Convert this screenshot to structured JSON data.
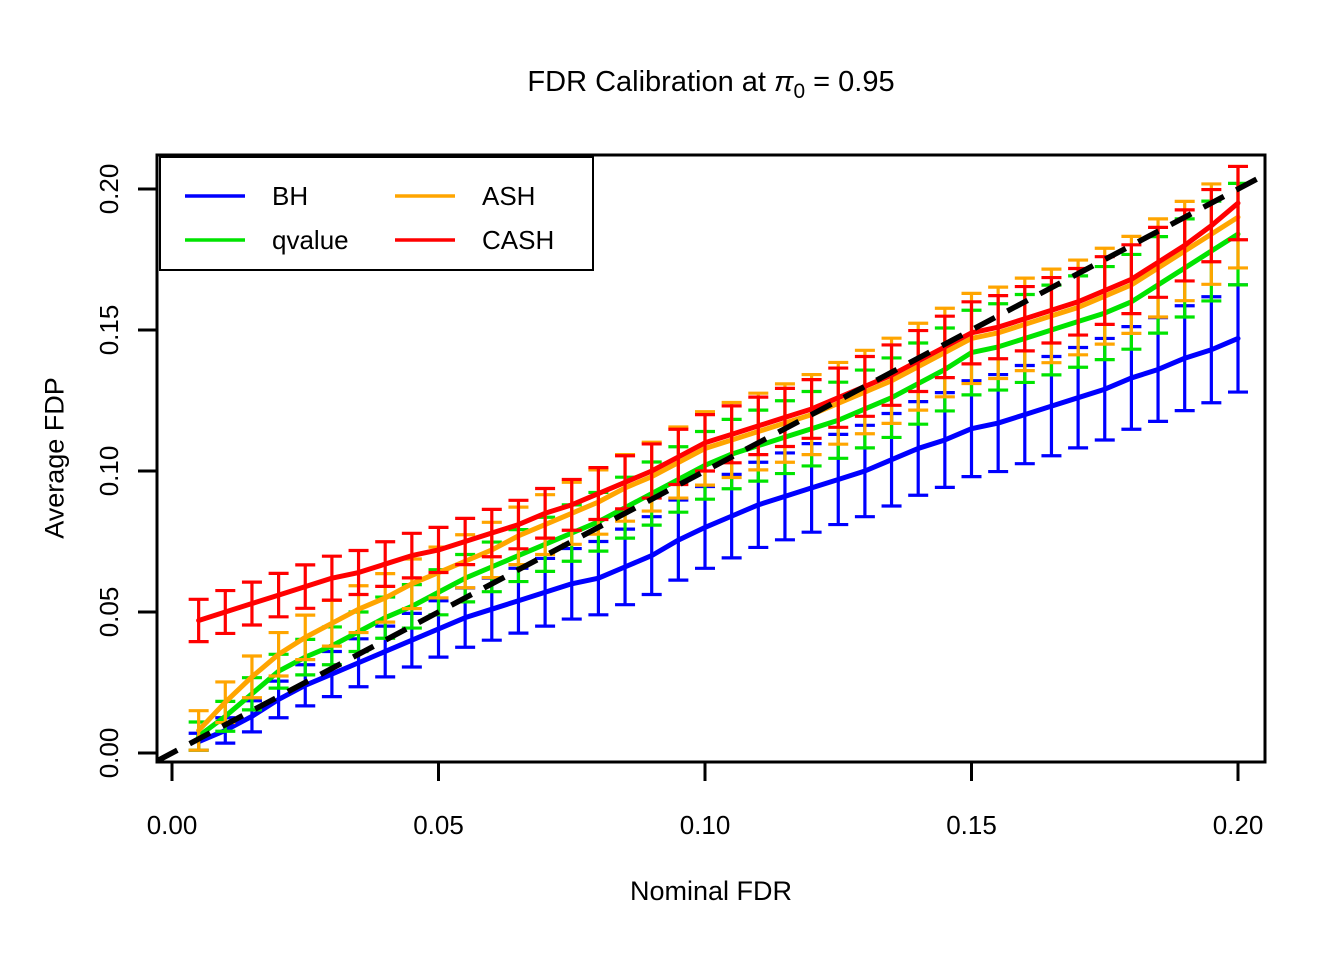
{
  "title": {
    "prefix": "FDR Calibration at ",
    "pi": "π",
    "sub": "0",
    "suffix": " = 0.95"
  },
  "axes": {
    "x_label": "Nominal FDR",
    "y_label": "Average FDP",
    "x_tick_labels": [
      "0.00",
      "0.05",
      "0.10",
      "0.15",
      "0.20"
    ],
    "y_tick_labels": [
      "0.00",
      "0.05",
      "0.10",
      "0.15",
      "0.20"
    ],
    "x_tick_values": [
      0,
      0.05,
      0.1,
      0.15,
      0.2
    ],
    "y_tick_values": [
      0,
      0.05,
      0.1,
      0.15,
      0.2
    ]
  },
  "legend": {
    "columns": 2,
    "entries": [
      {
        "label": "BH",
        "color": "#0000FF"
      },
      {
        "label": "qvalue",
        "color": "#00E400"
      },
      {
        "label": "ASH",
        "color": "#FFA500"
      },
      {
        "label": "CASH",
        "color": "#FF0000"
      }
    ]
  },
  "chart_data": {
    "type": "line",
    "title": "FDR Calibration at π0 = 0.95",
    "xlabel": "Nominal FDR",
    "ylabel": "Average FDP",
    "xlim": [
      -0.003,
      0.205
    ],
    "ylim": [
      -0.003,
      0.212
    ],
    "grid": false,
    "legend_position": "top-left",
    "error_bars": true,
    "x": [
      0.005,
      0.01,
      0.015,
      0.02,
      0.025,
      0.03,
      0.035,
      0.04,
      0.045,
      0.05,
      0.055,
      0.06,
      0.065,
      0.07,
      0.075,
      0.08,
      0.085,
      0.09,
      0.095,
      0.1,
      0.105,
      0.11,
      0.115,
      0.12,
      0.125,
      0.13,
      0.135,
      0.14,
      0.145,
      0.15,
      0.155,
      0.16,
      0.165,
      0.17,
      0.175,
      0.18,
      0.185,
      0.19,
      0.195,
      0.2
    ],
    "series": [
      {
        "name": "BH",
        "color": "#0000FF",
        "values": [
          0.004,
          0.008,
          0.013,
          0.019,
          0.024,
          0.028,
          0.032,
          0.036,
          0.04,
          0.044,
          0.048,
          0.051,
          0.054,
          0.057,
          0.06,
          0.062,
          0.066,
          0.07,
          0.0755,
          0.08,
          0.084,
          0.088,
          0.091,
          0.094,
          0.097,
          0.1,
          0.104,
          0.108,
          0.111,
          0.115,
          0.117,
          0.12,
          0.123,
          0.126,
          0.129,
          0.133,
          0.136,
          0.14,
          0.143,
          0.147
        ],
        "err_half": [
          0.003,
          0.0045,
          0.0055,
          0.0065,
          0.0073,
          0.008,
          0.0085,
          0.009,
          0.0095,
          0.01,
          0.0105,
          0.011,
          0.0115,
          0.012,
          0.0125,
          0.013,
          0.0134,
          0.0138,
          0.0142,
          0.0145,
          0.0148,
          0.0151,
          0.0154,
          0.0157,
          0.016,
          0.0162,
          0.0164,
          0.0166,
          0.0168,
          0.017,
          0.0172,
          0.0174,
          0.0176,
          0.0178,
          0.018,
          0.0182,
          0.0184,
          0.0186,
          0.0188,
          0.019
        ]
      },
      {
        "name": "qvalue",
        "color": "#00E400",
        "values": [
          0.006,
          0.013,
          0.021,
          0.029,
          0.034,
          0.038,
          0.043,
          0.048,
          0.052,
          0.057,
          0.062,
          0.066,
          0.07,
          0.074,
          0.078,
          0.082,
          0.087,
          0.092,
          0.097,
          0.102,
          0.106,
          0.109,
          0.112,
          0.115,
          0.118,
          0.122,
          0.126,
          0.131,
          0.136,
          0.142,
          0.144,
          0.147,
          0.15,
          0.153,
          0.156,
          0.16,
          0.166,
          0.172,
          0.178,
          0.184
        ],
        "err_half": [
          0.005,
          0.0053,
          0.0057,
          0.006,
          0.0063,
          0.0067,
          0.007,
          0.0073,
          0.0077,
          0.008,
          0.0084,
          0.0088,
          0.0092,
          0.0096,
          0.01,
          0.0104,
          0.0108,
          0.0112,
          0.0116,
          0.012,
          0.0123,
          0.0126,
          0.0129,
          0.0132,
          0.0135,
          0.0138,
          0.0141,
          0.0144,
          0.0147,
          0.015,
          0.0153,
          0.0156,
          0.0159,
          0.0162,
          0.0165,
          0.0168,
          0.0171,
          0.0174,
          0.0177,
          0.018
        ]
      },
      {
        "name": "ASH",
        "color": "#FFA500",
        "values": [
          0.008,
          0.018,
          0.027,
          0.035,
          0.041,
          0.046,
          0.051,
          0.055,
          0.06,
          0.064,
          0.068,
          0.072,
          0.077,
          0.081,
          0.085,
          0.089,
          0.094,
          0.098,
          0.103,
          0.108,
          0.111,
          0.114,
          0.117,
          0.12,
          0.124,
          0.128,
          0.132,
          0.137,
          0.142,
          0.147,
          0.149,
          0.152,
          0.155,
          0.158,
          0.162,
          0.166,
          0.172,
          0.178,
          0.184,
          0.19
        ],
        "err_half": [
          0.007,
          0.0072,
          0.0074,
          0.0077,
          0.0079,
          0.0081,
          0.0083,
          0.0086,
          0.0088,
          0.009,
          0.0094,
          0.0098,
          0.0102,
          0.0106,
          0.011,
          0.0114,
          0.0118,
          0.0122,
          0.0126,
          0.013,
          0.0133,
          0.0136,
          0.0139,
          0.0142,
          0.0145,
          0.0148,
          0.0151,
          0.0154,
          0.0157,
          0.016,
          0.0162,
          0.0164,
          0.0166,
          0.0168,
          0.017,
          0.0172,
          0.0174,
          0.0176,
          0.0178,
          0.018
        ]
      },
      {
        "name": "CASH",
        "color": "#FF0000",
        "values": [
          0.047,
          0.05,
          0.053,
          0.056,
          0.059,
          0.062,
          0.064,
          0.067,
          0.07,
          0.072,
          0.075,
          0.078,
          0.081,
          0.085,
          0.088,
          0.092,
          0.096,
          0.1,
          0.105,
          0.11,
          0.113,
          0.116,
          0.119,
          0.122,
          0.126,
          0.13,
          0.134,
          0.139,
          0.144,
          0.149,
          0.151,
          0.154,
          0.157,
          0.16,
          0.164,
          0.168,
          0.174,
          0.18,
          0.187,
          0.195
        ],
        "err_half": [
          0.0075,
          0.0076,
          0.0076,
          0.0077,
          0.0077,
          0.0078,
          0.0078,
          0.0079,
          0.0079,
          0.008,
          0.0082,
          0.0084,
          0.0086,
          0.0088,
          0.009,
          0.0092,
          0.0094,
          0.0096,
          0.0098,
          0.01,
          0.0101,
          0.0102,
          0.0103,
          0.0104,
          0.0105,
          0.0106,
          0.0107,
          0.0108,
          0.0109,
          0.011,
          0.0112,
          0.0114,
          0.0116,
          0.0118,
          0.012,
          0.0122,
          0.0124,
          0.0126,
          0.0128,
          0.013
        ]
      }
    ],
    "reference_line": {
      "style": "dashed",
      "color": "#000000",
      "slope": 1,
      "intercept": 0,
      "label": "y = x"
    }
  }
}
